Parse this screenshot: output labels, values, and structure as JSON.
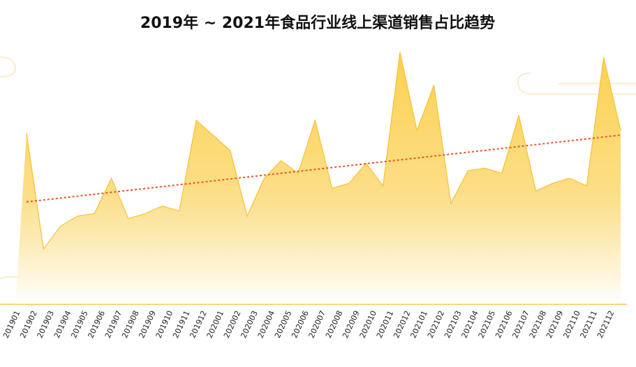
{
  "chart_data": {
    "type": "area",
    "title": "2019年 ~ 2021年食品行业线上渠道销售占比趋势",
    "categories": [
      "201901",
      "201902",
      "201903",
      "201904",
      "201905",
      "201906",
      "201907",
      "201908",
      "201909",
      "201910",
      "201911",
      "201912",
      "202001",
      "202002",
      "202003",
      "202004",
      "202005",
      "202006",
      "202007",
      "202008",
      "202009",
      "202010",
      "202011",
      "202012",
      "202101",
      "202102",
      "202103",
      "202104",
      "202105",
      "202106",
      "202107",
      "202108",
      "202109",
      "202110",
      "202111",
      "202112"
    ],
    "values": [
      68,
      22,
      31,
      35,
      36,
      50,
      34,
      36,
      39,
      37,
      73,
      67,
      61,
      35,
      50,
      57,
      52,
      73,
      46,
      48,
      56,
      47,
      100,
      69,
      87,
      40,
      53,
      54,
      52,
      75,
      45,
      48,
      50,
      47,
      98,
      69
    ],
    "color": "#fcd45a",
    "trendline": true,
    "trend_color": "#e8552a"
  }
}
